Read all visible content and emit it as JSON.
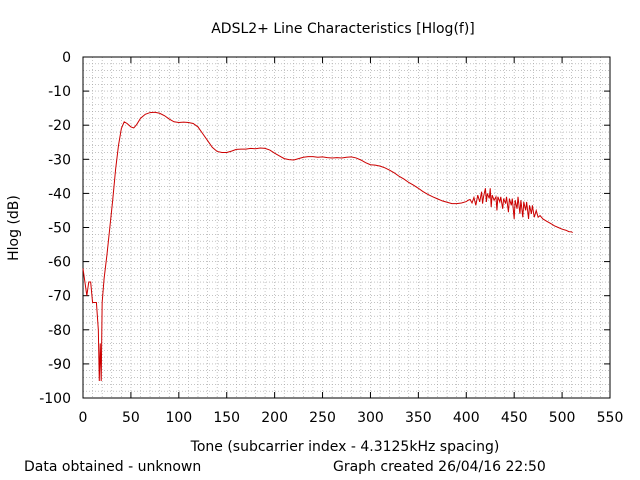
{
  "chart_data": {
    "type": "line",
    "title": "ADSL2+ Line Characteristics [Hlog(f)]",
    "xlabel": "Tone (subcarrier index - 4.3125kHz spacing)",
    "ylabel": "Hlog (dB)",
    "xlim": [
      0,
      550
    ],
    "ylim": [
      -100,
      0
    ],
    "xticks": [
      0,
      50,
      100,
      150,
      200,
      250,
      300,
      350,
      400,
      450,
      500,
      550
    ],
    "yticks": [
      0,
      -10,
      -20,
      -30,
      -40,
      -50,
      -60,
      -70,
      -80,
      -90,
      -100
    ],
    "grid": "dotted",
    "line_color": "#cc0000",
    "series": [
      {
        "points": [
          [
            0,
            -62
          ],
          [
            2,
            -66
          ],
          [
            4,
            -70
          ],
          [
            6,
            -66
          ],
          [
            8,
            -66
          ],
          [
            10,
            -72
          ],
          [
            14,
            -72
          ],
          [
            16,
            -80
          ],
          [
            17,
            -95
          ],
          [
            18,
            -84
          ],
          [
            19,
            -95
          ],
          [
            20,
            -72
          ],
          [
            22,
            -65
          ],
          [
            25,
            -58
          ],
          [
            28,
            -50
          ],
          [
            31,
            -42
          ],
          [
            34,
            -33
          ],
          [
            37,
            -26
          ],
          [
            40,
            -21
          ],
          [
            43,
            -19
          ],
          [
            46,
            -19.5
          ],
          [
            50,
            -20.5
          ],
          [
            53,
            -20.8
          ],
          [
            56,
            -19.8
          ],
          [
            60,
            -18
          ],
          [
            65,
            -16.8
          ],
          [
            70,
            -16.3
          ],
          [
            75,
            -16.2
          ],
          [
            80,
            -16.5
          ],
          [
            85,
            -17.2
          ],
          [
            90,
            -18.2
          ],
          [
            95,
            -19
          ],
          [
            100,
            -19.2
          ],
          [
            105,
            -19.1
          ],
          [
            110,
            -19.2
          ],
          [
            115,
            -19.5
          ],
          [
            120,
            -20.5
          ],
          [
            125,
            -22.5
          ],
          [
            130,
            -24.5
          ],
          [
            135,
            -26.5
          ],
          [
            140,
            -27.7
          ],
          [
            145,
            -28
          ],
          [
            150,
            -28
          ],
          [
            155,
            -27.6
          ],
          [
            160,
            -27.1
          ],
          [
            165,
            -27
          ],
          [
            170,
            -27
          ],
          [
            175,
            -26.8
          ],
          [
            180,
            -26.9
          ],
          [
            185,
            -26.7
          ],
          [
            190,
            -26.8
          ],
          [
            195,
            -27.3
          ],
          [
            200,
            -28.2
          ],
          [
            205,
            -29
          ],
          [
            210,
            -29.8
          ],
          [
            215,
            -30.1
          ],
          [
            220,
            -30.2
          ],
          [
            225,
            -29.8
          ],
          [
            230,
            -29.4
          ],
          [
            235,
            -29.2
          ],
          [
            240,
            -29.2
          ],
          [
            245,
            -29.4
          ],
          [
            250,
            -29.3
          ],
          [
            255,
            -29.5
          ],
          [
            260,
            -29.6
          ],
          [
            265,
            -29.5
          ],
          [
            270,
            -29.6
          ],
          [
            275,
            -29.4
          ],
          [
            280,
            -29.3
          ],
          [
            285,
            -29.6
          ],
          [
            290,
            -30.2
          ],
          [
            295,
            -31
          ],
          [
            300,
            -31.6
          ],
          [
            305,
            -31.7
          ],
          [
            310,
            -32
          ],
          [
            315,
            -32.5
          ],
          [
            320,
            -33.2
          ],
          [
            325,
            -34
          ],
          [
            330,
            -35
          ],
          [
            335,
            -35.8
          ],
          [
            340,
            -36.8
          ],
          [
            345,
            -37.6
          ],
          [
            350,
            -38.5
          ],
          [
            355,
            -39.5
          ],
          [
            360,
            -40.3
          ],
          [
            365,
            -41
          ],
          [
            370,
            -41.6
          ],
          [
            375,
            -42.2
          ],
          [
            380,
            -42.6
          ],
          [
            385,
            -43
          ],
          [
            390,
            -43
          ],
          [
            395,
            -42.8
          ],
          [
            400,
            -42.4
          ],
          [
            402,
            -42
          ],
          [
            404,
            -41.8
          ],
          [
            406,
            -42.8
          ],
          [
            408,
            -41.2
          ],
          [
            410,
            -43.5
          ],
          [
            412,
            -40.5
          ],
          [
            414,
            -42.5
          ],
          [
            416,
            -39.5
          ],
          [
            417,
            -43
          ],
          [
            418,
            -41
          ],
          [
            420,
            -38.5
          ],
          [
            421,
            -42.5
          ],
          [
            422,
            -40
          ],
          [
            424,
            -41.5
          ],
          [
            425,
            -38.5
          ],
          [
            426,
            -44
          ],
          [
            427,
            -40.5
          ],
          [
            429,
            -42
          ],
          [
            431,
            -41
          ],
          [
            432,
            -45
          ],
          [
            433,
            -41
          ],
          [
            435,
            -42.5
          ],
          [
            436,
            -41
          ],
          [
            438,
            -44.5
          ],
          [
            439,
            -41.5
          ],
          [
            441,
            -43
          ],
          [
            442,
            -41
          ],
          [
            444,
            -45.5
          ],
          [
            445,
            -41.5
          ],
          [
            447,
            -43.5
          ],
          [
            448,
            -41.5
          ],
          [
            450,
            -47.5
          ],
          [
            451,
            -42
          ],
          [
            453,
            -44.5
          ],
          [
            454,
            -41
          ],
          [
            456,
            -46
          ],
          [
            457,
            -42
          ],
          [
            459,
            -47
          ],
          [
            460,
            -42.5
          ],
          [
            462,
            -45
          ],
          [
            463,
            -42.5
          ],
          [
            465,
            -47.5
          ],
          [
            466,
            -43.5
          ],
          [
            468,
            -46
          ],
          [
            469,
            -43.5
          ],
          [
            471,
            -47
          ],
          [
            473,
            -45
          ],
          [
            475,
            -47
          ],
          [
            477,
            -46.5
          ],
          [
            480,
            -47.5
          ],
          [
            484,
            -48.2
          ],
          [
            488,
            -48.8
          ],
          [
            492,
            -49.5
          ],
          [
            496,
            -50
          ],
          [
            500,
            -50.5
          ],
          [
            504,
            -50.8
          ],
          [
            507,
            -51.2
          ],
          [
            510,
            -51.3
          ],
          [
            511,
            -51.5
          ]
        ]
      }
    ]
  },
  "footer": {
    "left": "Data obtained - unknown",
    "right": "Graph created 26/04/16 22:50"
  }
}
